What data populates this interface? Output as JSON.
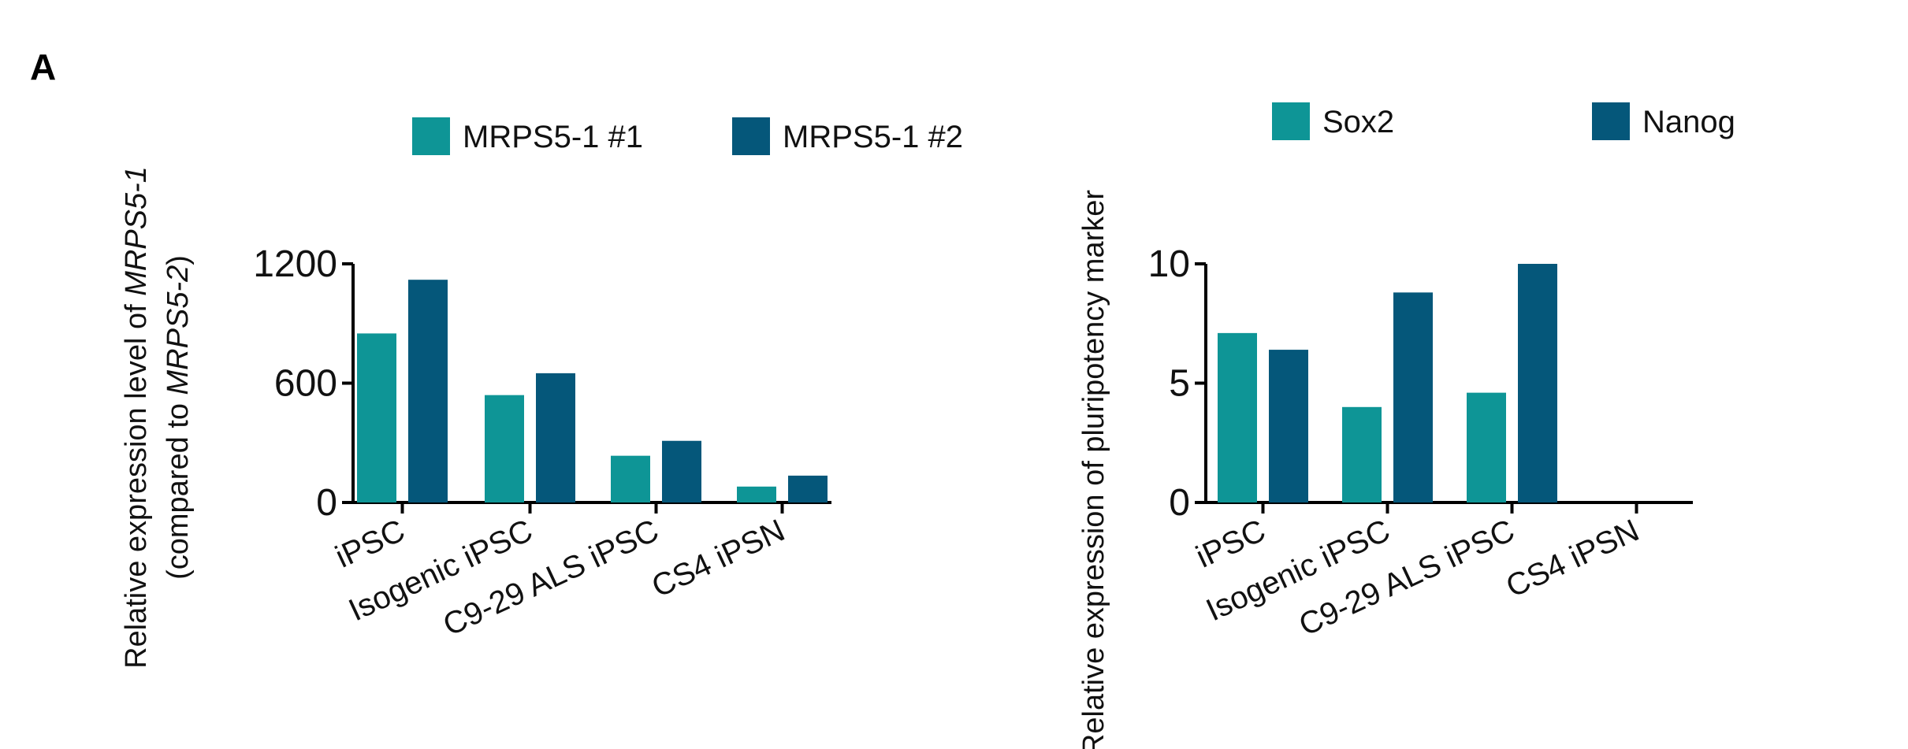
{
  "figure": {
    "panel_label": "A"
  },
  "chart_data": [
    {
      "type": "bar",
      "ylabel_lines": [
        [
          "Relative expression level of ",
          "MRPS5-1"
        ],
        [
          "(compared to ",
          "MRPS5-2",
          ")"
        ]
      ],
      "ylabel_italic": [
        [
          false,
          true
        ],
        [
          false,
          true,
          false
        ]
      ],
      "categories": [
        "iPSC",
        "Isogenic iPSC",
        "C9-29 ALS iPSC",
        "CS4 iPSN"
      ],
      "series": [
        {
          "name": "MRPS5-1 #1",
          "color": "#0e9596",
          "values": [
            850,
            540,
            235,
            80
          ]
        },
        {
          "name": "MRPS5-1 #2",
          "color": "#05577a",
          "values": [
            1120,
            650,
            310,
            135
          ]
        }
      ],
      "ylim": [
        0,
        1200
      ],
      "yticks": [
        0,
        600,
        1200
      ],
      "legend": "top"
    },
    {
      "type": "bar",
      "ylabel_lines": [
        [
          "Relative expression of pluripotency marker"
        ]
      ],
      "ylabel_italic": [
        [
          false
        ]
      ],
      "categories": [
        "iPSC",
        "Isogenic iPSC",
        "C9-29 ALS iPSC",
        "CS4 iPSN"
      ],
      "series": [
        {
          "name": "Sox2",
          "color": "#0e9596",
          "values": [
            7.1,
            4.0,
            4.6,
            0
          ]
        },
        {
          "name": "Nanog",
          "color": "#05577a",
          "values": [
            6.4,
            8.8,
            10.0,
            0
          ]
        }
      ],
      "ylim": [
        0,
        10
      ],
      "yticks": [
        0,
        5,
        10
      ],
      "legend": "top"
    }
  ]
}
